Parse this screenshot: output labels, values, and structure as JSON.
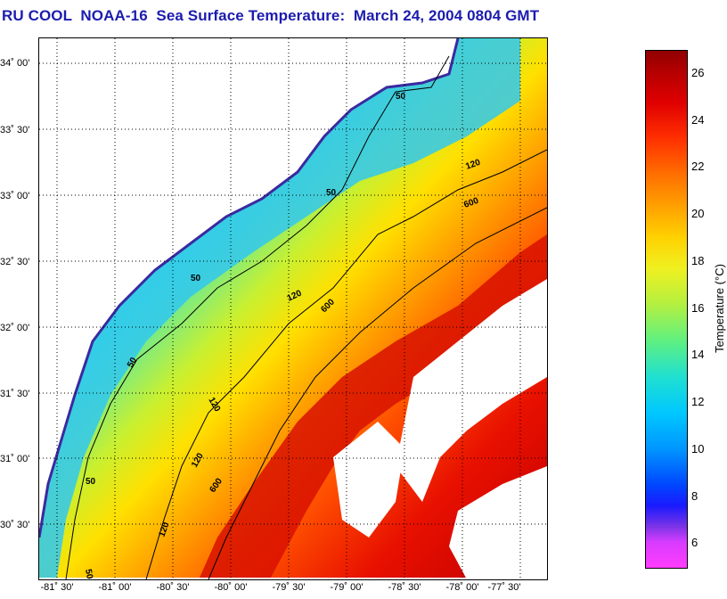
{
  "title": "RU COOL  NOAA-16  Sea Surface Temperature:  March 24, 2004 0804 GMT",
  "map": {
    "lat_labels": [
      "34˚ 00'",
      "33˚ 30'",
      "33˚ 00'",
      "32˚ 30'",
      "32˚ 00'",
      "31˚ 30'",
      "31˚ 00'",
      "30˚ 30'"
    ],
    "lon_labels": [
      "-81˚ 30'",
      "-81˚ 00'",
      "-80˚ 30'",
      "-80˚ 00'",
      "-79˚ 30'",
      "-79˚ 00'",
      "-78˚ 30'",
      "-78˚ 00'",
      "-77˚ 30'"
    ],
    "contour_labels": [
      "50",
      "50",
      "50",
      "50",
      "50",
      "50",
      "120",
      "120",
      "120",
      "120",
      "120",
      "600",
      "600",
      "600"
    ]
  },
  "colorbar": {
    "label": "Temperature (°C)",
    "ticks": [
      "26",
      "24",
      "22",
      "20",
      "18",
      "16",
      "14",
      "12",
      "10",
      "8",
      "6"
    ],
    "range": [
      5,
      27
    ]
  },
  "colors": {
    "title": "#1c1cae",
    "land": "#ffffff",
    "contour": "#000000"
  }
}
